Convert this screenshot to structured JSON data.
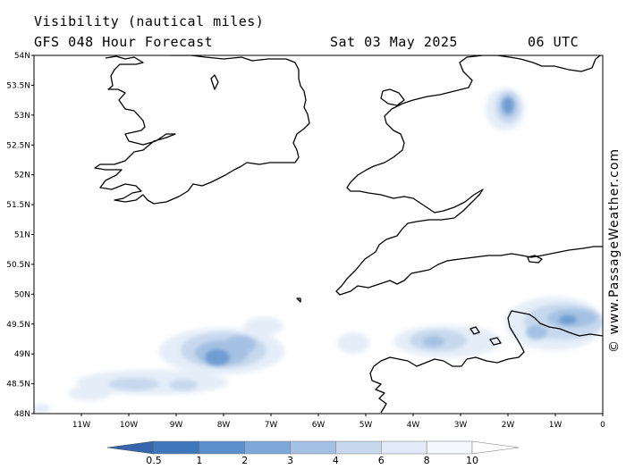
{
  "header": {
    "title": "Visibility (nautical miles)",
    "subtitle": "GFS 048 Hour Forecast",
    "date": "Sat 03 May 2025",
    "time": "06 UTC"
  },
  "credit": "© www.PassageWeather.com",
  "map": {
    "lat_range": [
      48,
      54
    ],
    "lon_range": [
      -12,
      0
    ],
    "lat_labels": [
      "54N",
      "53.5N",
      "53N",
      "52.5N",
      "52N",
      "51.5N",
      "51N",
      "50.5N",
      "50N",
      "49.5N",
      "49N",
      "48.5N",
      "48N"
    ],
    "lon_labels": [
      "11W",
      "10W",
      "9W",
      "8W",
      "7W",
      "6W",
      "5W",
      "4W",
      "3W",
      "2W",
      "1W",
      "0"
    ]
  },
  "legend": {
    "values": [
      "0.5",
      "1",
      "2",
      "3",
      "4",
      "6",
      "8",
      "10"
    ],
    "colors": [
      "#3f77bd",
      "#5b8fcc",
      "#7ea8d8",
      "#a4c1e3",
      "#c7d8ee",
      "#e1eaf6",
      "#f4f7fc"
    ]
  }
}
